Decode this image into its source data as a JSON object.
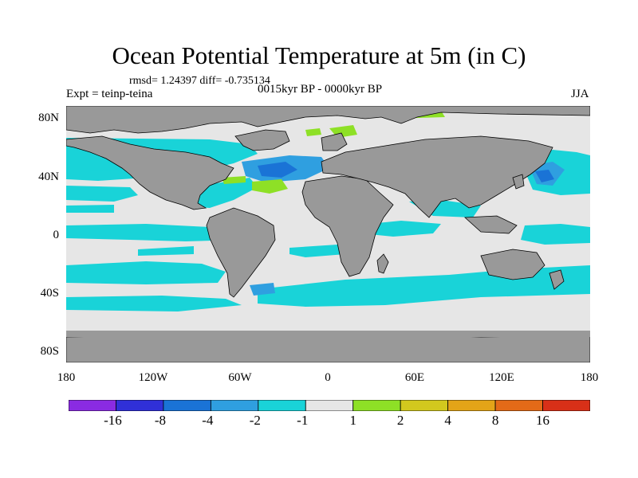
{
  "title": "Ocean Potential Temperature at 5m (in C)",
  "stats": "rmsd= 1.24397 diff= -0.735134",
  "experiment": "Expt = teinp-teina",
  "period": "0015kyr BP - 0000kyr BP",
  "season": "JJA",
  "lat_ticks": [
    "80N",
    "40N",
    "0",
    "40S",
    "80S"
  ],
  "lon_ticks": [
    "180",
    "120W",
    "60W",
    "0",
    "60E",
    "120E",
    "180"
  ],
  "colorbar": {
    "colors": [
      "#8a2be2",
      "#3030d8",
      "#1a73d6",
      "#2f9fe0",
      "#19d3d8",
      "#e6e6e6",
      "#8ee026",
      "#d2c81e",
      "#e3a418",
      "#e36a18",
      "#d83018"
    ],
    "labels": [
      "-16",
      "-8",
      "-4",
      "-2",
      "-1",
      "1",
      "2",
      "4",
      "8",
      "16"
    ]
  },
  "colors": {
    "land": "#999999",
    "ocean_neutral": "#e6e6e6",
    "cool_1": "#19d3d8",
    "cool_2": "#2f9fe0",
    "cool_3": "#1a73d6",
    "warm_1": "#8ee026",
    "warm_2": "#d2c81e",
    "warm_3": "#e3a418"
  }
}
